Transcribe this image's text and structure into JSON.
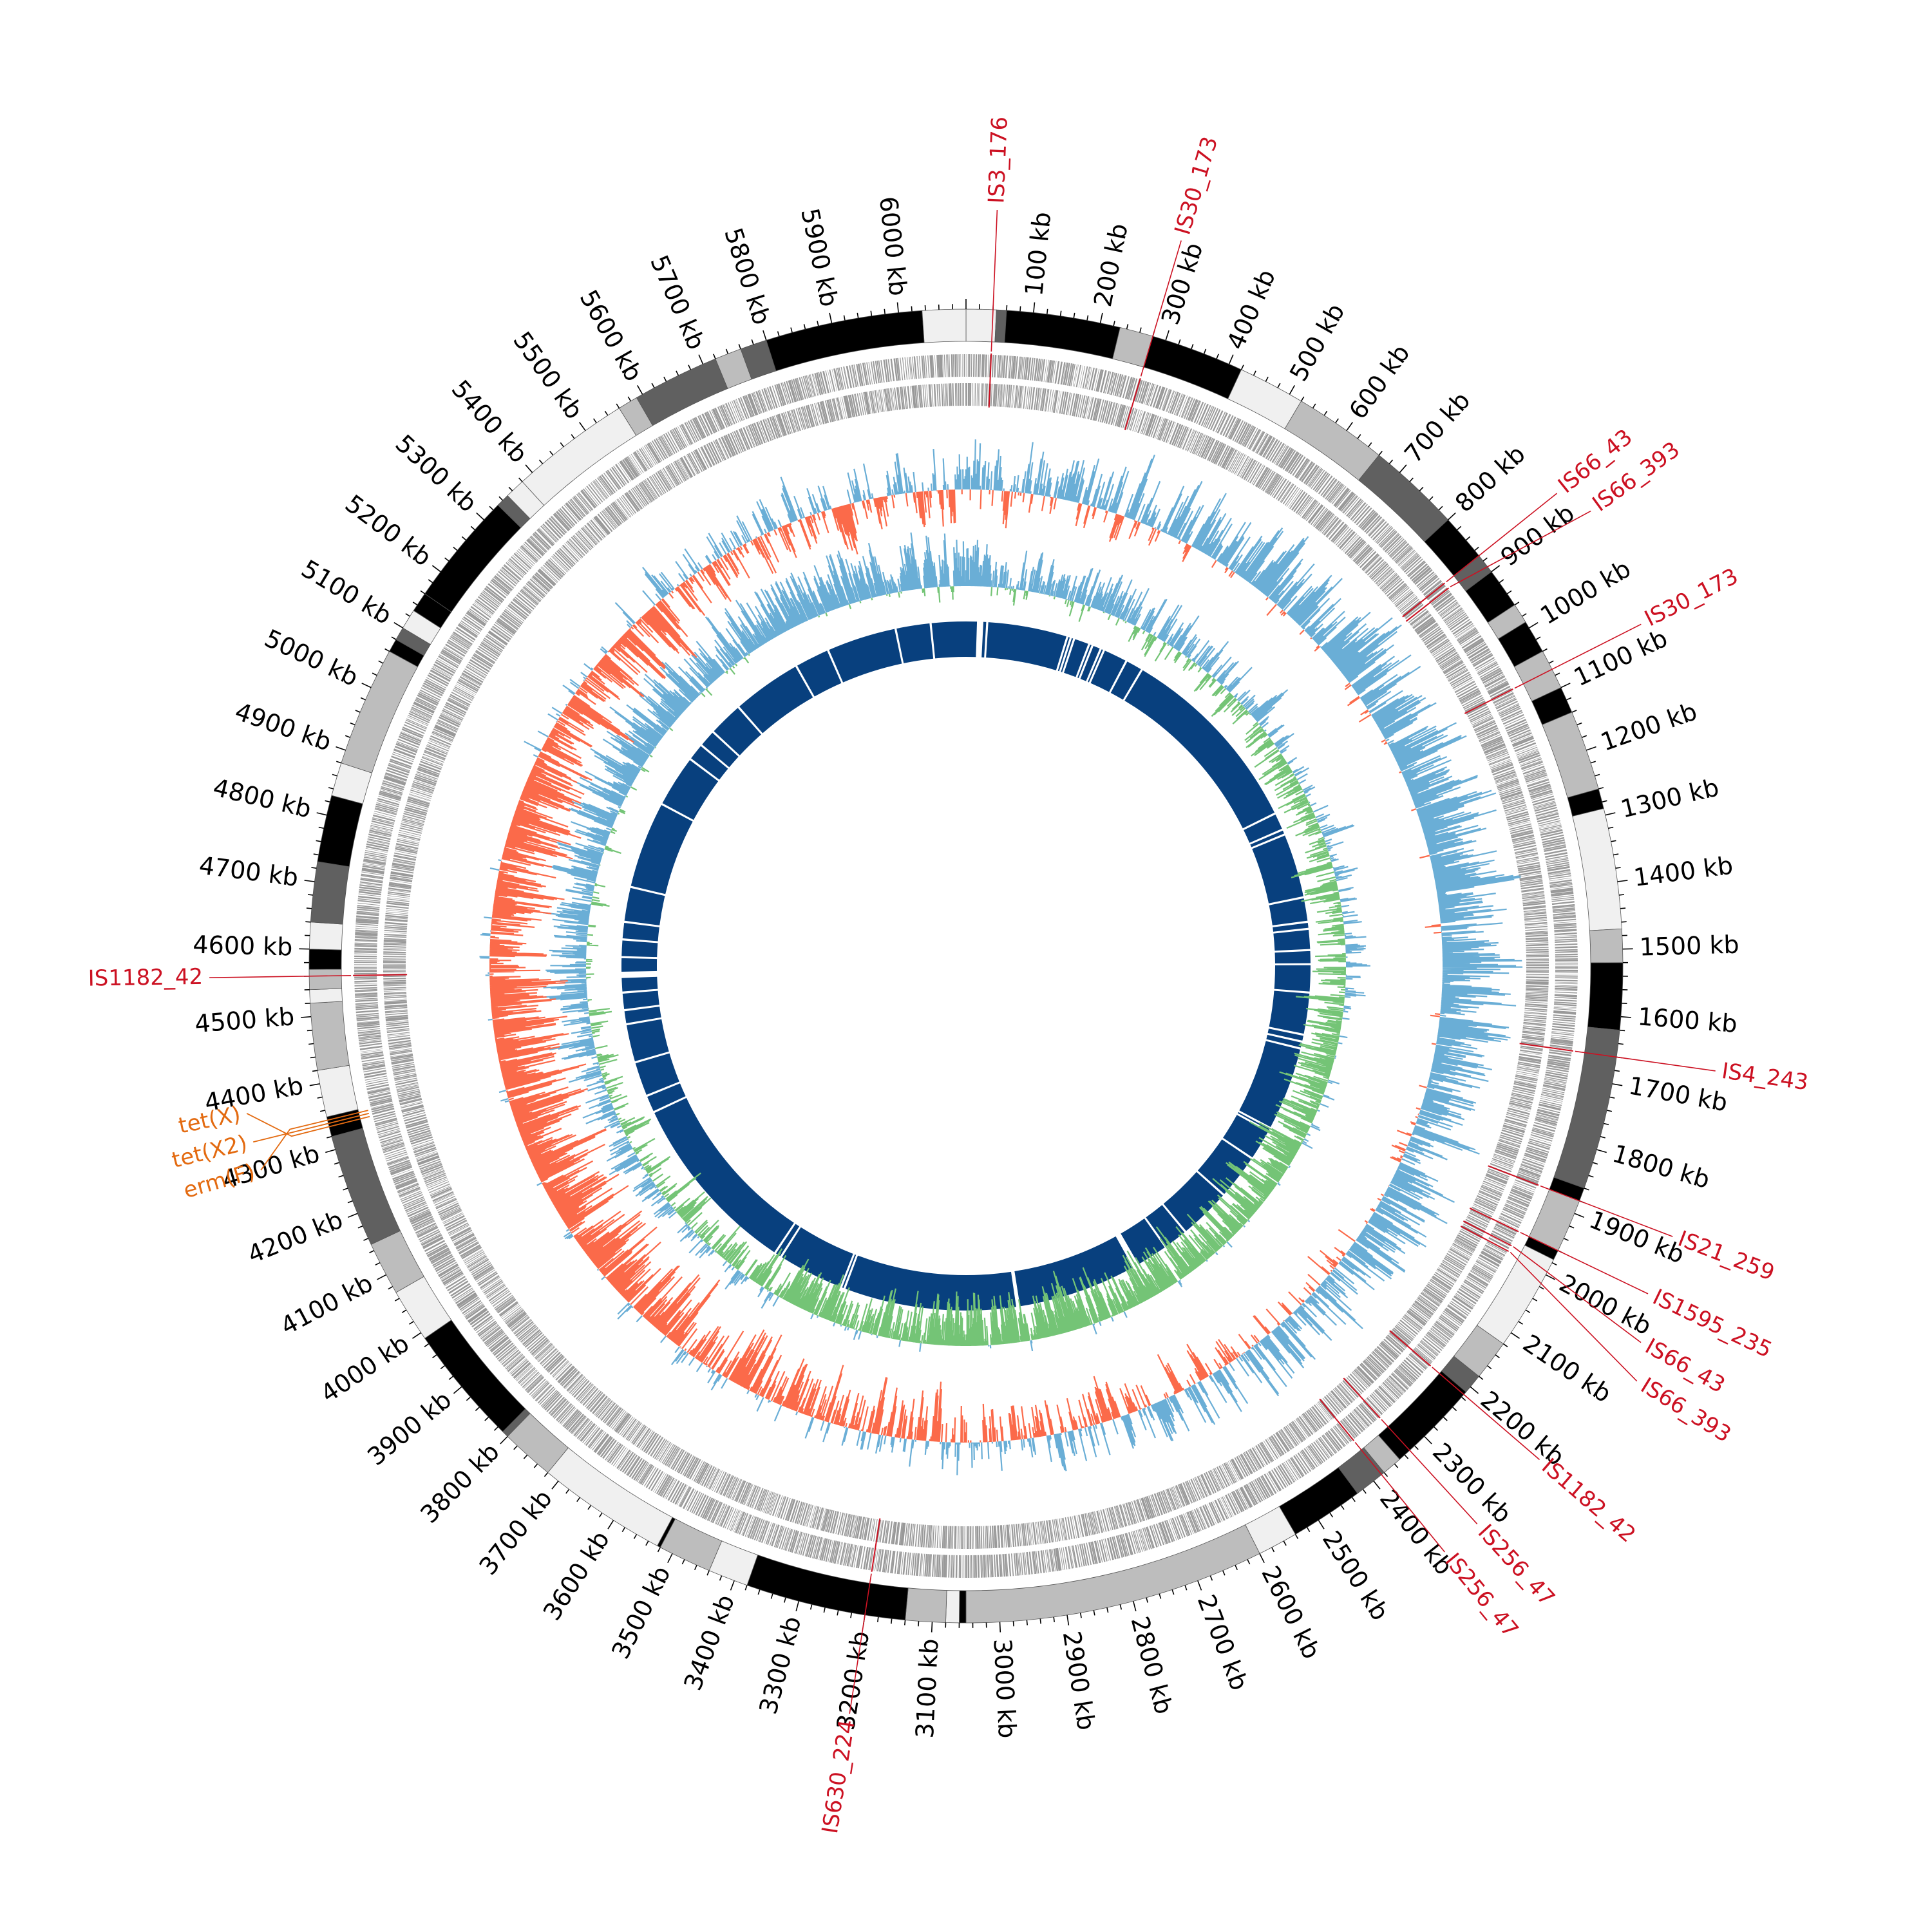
{
  "genome": {
    "length_kb": 6100,
    "unit_suffix": " kb",
    "tick_labels": [
      "100 kb",
      "200 kb",
      "300 kb",
      "400 kb",
      "500 kb",
      "600 kb",
      "700 kb",
      "800 kb",
      "900 kb",
      "1000 kb",
      "1100 kb",
      "1200 kb",
      "1300 kb",
      "1400 kb",
      "1500 kb",
      "1600 kb",
      "1700 kb",
      "1800 kb",
      "1900 kb",
      "2000 kb",
      "2100 kb",
      "2200 kb",
      "2300 kb",
      "2400 kb",
      "2500 kb",
      "2600 kb",
      "2700 kb",
      "2800 kb",
      "2900 kb",
      "3000 kb",
      "3100 kb",
      "3200 kb",
      "3300 kb",
      "3400 kb",
      "3500 kb",
      "3600 kb",
      "3700 kb",
      "3800 kb",
      "3900 kb",
      "4000 kb",
      "4100 kb",
      "4200 kb",
      "4300 kb",
      "4400 kb",
      "4500 kb",
      "4600 kb",
      "4700 kb",
      "4800 kb",
      "4900 kb",
      "5000 kb",
      "5100 kb",
      "5200 kb",
      "5300 kb",
      "5400 kb",
      "5500 kb",
      "5600 kb",
      "5700 kb",
      "5800 kb",
      "5900 kb",
      "6000 kb"
    ]
  },
  "contigs": [
    {
      "start": 0,
      "end": 45,
      "shade": "#f0f0f0"
    },
    {
      "start": 45,
      "end": 60,
      "shade": "#606060"
    },
    {
      "start": 60,
      "end": 230,
      "shade": "#000000"
    },
    {
      "start": 230,
      "end": 280,
      "shade": "#bdbdbd"
    },
    {
      "start": 280,
      "end": 420,
      "shade": "#000000"
    },
    {
      "start": 420,
      "end": 520,
      "shade": "#f0f0f0"
    },
    {
      "start": 520,
      "end": 660,
      "shade": "#bdbdbd"
    },
    {
      "start": 660,
      "end": 800,
      "shade": "#606060"
    },
    {
      "start": 800,
      "end": 870,
      "shade": "#000000"
    },
    {
      "start": 870,
      "end": 900,
      "shade": "#606060"
    },
    {
      "start": 900,
      "end": 960,
      "shade": "#000000"
    },
    {
      "start": 960,
      "end": 990,
      "shade": "#bdbdbd"
    },
    {
      "start": 990,
      "end": 1040,
      "shade": "#000000"
    },
    {
      "start": 1040,
      "end": 1100,
      "shade": "#bdbdbd"
    },
    {
      "start": 1100,
      "end": 1140,
      "shade": "#000000"
    },
    {
      "start": 1140,
      "end": 1260,
      "shade": "#bdbdbd"
    },
    {
      "start": 1260,
      "end": 1290,
      "shade": "#000000"
    },
    {
      "start": 1290,
      "end": 1470,
      "shade": "#f0f0f0"
    },
    {
      "start": 1470,
      "end": 1520,
      "shade": "#bdbdbd"
    },
    {
      "start": 1520,
      "end": 1620,
      "shade": "#000000"
    },
    {
      "start": 1620,
      "end": 1860,
      "shade": "#606060"
    },
    {
      "start": 1860,
      "end": 1880,
      "shade": "#000000"
    },
    {
      "start": 1880,
      "end": 1960,
      "shade": "#bdbdbd"
    },
    {
      "start": 1960,
      "end": 1975,
      "shade": "#000000"
    },
    {
      "start": 1975,
      "end": 2120,
      "shade": "#f0f0f0"
    },
    {
      "start": 2120,
      "end": 2180,
      "shade": "#bdbdbd"
    },
    {
      "start": 2180,
      "end": 2210,
      "shade": "#606060"
    },
    {
      "start": 2210,
      "end": 2350,
      "shade": "#000000"
    },
    {
      "start": 2350,
      "end": 2380,
      "shade": "#bdbdbd"
    },
    {
      "start": 2380,
      "end": 2430,
      "shade": "#606060"
    },
    {
      "start": 2430,
      "end": 2540,
      "shade": "#000000"
    },
    {
      "start": 2540,
      "end": 2600,
      "shade": "#f0f0f0"
    },
    {
      "start": 2600,
      "end": 3050,
      "shade": "#bdbdbd"
    },
    {
      "start": 3050,
      "end": 3060,
      "shade": "#000000"
    },
    {
      "start": 3060,
      "end": 3080,
      "shade": "#f0f0f0"
    },
    {
      "start": 3080,
      "end": 3140,
      "shade": "#bdbdbd"
    },
    {
      "start": 3140,
      "end": 3380,
      "shade": "#000000"
    },
    {
      "start": 3380,
      "end": 3440,
      "shade": "#f0f0f0"
    },
    {
      "start": 3440,
      "end": 3520,
      "shade": "#bdbdbd"
    },
    {
      "start": 3520,
      "end": 3525,
      "shade": "#000000"
    },
    {
      "start": 3525,
      "end": 3720,
      "shade": "#f0f0f0"
    },
    {
      "start": 3720,
      "end": 3800,
      "shade": "#bdbdbd"
    },
    {
      "start": 3800,
      "end": 3810,
      "shade": "#606060"
    },
    {
      "start": 3810,
      "end": 3990,
      "shade": "#000000"
    },
    {
      "start": 3990,
      "end": 4070,
      "shade": "#f0f0f0"
    },
    {
      "start": 4070,
      "end": 4150,
      "shade": "#bdbdbd"
    },
    {
      "start": 4150,
      "end": 4320,
      "shade": "#606060"
    },
    {
      "start": 4320,
      "end": 4350,
      "shade": "#000000"
    },
    {
      "start": 4350,
      "end": 4420,
      "shade": "#f0f0f0"
    },
    {
      "start": 4420,
      "end": 4520,
      "shade": "#bdbdbd"
    },
    {
      "start": 4520,
      "end": 4540,
      "shade": "#f0f0f0"
    },
    {
      "start": 4540,
      "end": 4570,
      "shade": "#bdbdbd"
    },
    {
      "start": 4570,
      "end": 4600,
      "shade": "#000000"
    },
    {
      "start": 4600,
      "end": 4640,
      "shade": "#f0f0f0"
    },
    {
      "start": 4640,
      "end": 4730,
      "shade": "#606060"
    },
    {
      "start": 4730,
      "end": 4830,
      "shade": "#000000"
    },
    {
      "start": 4830,
      "end": 4880,
      "shade": "#f0f0f0"
    },
    {
      "start": 4880,
      "end": 5060,
      "shade": "#bdbdbd"
    },
    {
      "start": 5060,
      "end": 5080,
      "shade": "#000000"
    },
    {
      "start": 5080,
      "end": 5100,
      "shade": "#606060"
    },
    {
      "start": 5100,
      "end": 5130,
      "shade": "#f0f0f0"
    },
    {
      "start": 5130,
      "end": 5160,
      "shade": "#000000"
    },
    {
      "start": 5160,
      "end": 5330,
      "shade": "#000000"
    },
    {
      "start": 5330,
      "end": 5350,
      "shade": "#606060"
    },
    {
      "start": 5350,
      "end": 5380,
      "shade": "#f0f0f0"
    },
    {
      "start": 5380,
      "end": 5560,
      "shade": "#f0f0f0"
    },
    {
      "start": 5560,
      "end": 5590,
      "shade": "#bdbdbd"
    },
    {
      "start": 5590,
      "end": 5720,
      "shade": "#606060"
    },
    {
      "start": 5720,
      "end": 5760,
      "shade": "#bdbdbd"
    },
    {
      "start": 5760,
      "end": 5800,
      "shade": "#606060"
    },
    {
      "start": 5800,
      "end": 6035,
      "shade": "#000000"
    },
    {
      "start": 6035,
      "end": 6100,
      "shade": "#f0f0f0"
    }
  ],
  "is_elements": [
    {
      "label": "IS3_176",
      "pos": 40
    },
    {
      "label": "IS30_173",
      "pos": 280
    },
    {
      "label": "IS66_43",
      "pos": 870
    },
    {
      "label": "IS66_393",
      "pos": 880
    },
    {
      "label": "IS30_173",
      "pos": 1070
    },
    {
      "label": "IS4_243",
      "pos": 1660
    },
    {
      "label": "IS21_259",
      "pos": 1880
    },
    {
      "label": "IS1595_235",
      "pos": 1960
    },
    {
      "label": "IS66_43",
      "pos": 1985
    },
    {
      "label": "IS66_393",
      "pos": 1995
    },
    {
      "label": "IS1182_42",
      "pos": 2215
    },
    {
      "label": "IS256_47",
      "pos": 2330
    },
    {
      "label": "IS256_47",
      "pos": 2385
    },
    {
      "label": "IS630_224",
      "pos": 3200
    },
    {
      "label": "IS1182_42",
      "pos": 4560
    }
  ],
  "resistance_genes": [
    {
      "label": "erm(F)",
      "pos": 4345
    },
    {
      "label": "tet(X2)",
      "pos": 4340
    },
    {
      "label": "tet(X)",
      "pos": 4335
    }
  ],
  "colors": {
    "is_element": "#cc1122",
    "resistance_gene": "#e36a10",
    "cds_track": "#999999",
    "gc_skew_positive": "#6aaed6",
    "gc_skew_negative": "#fb6a4a",
    "gc_content_positive": "#6aaed6",
    "gc_content_negative": "#74c476",
    "homology_ring": "#08407e"
  },
  "homology_ring_gaps_kb": [
    40,
    60,
    290,
    300,
    310,
    355,
    365,
    390,
    400,
    470,
    520,
    1080,
    1130,
    1145,
    1330,
    1400,
    1420,
    1480,
    1520,
    1600,
    1720,
    1740,
    1760,
    2000,
    2010,
    2100,
    2230,
    2380,
    2450,
    2550,
    2900,
    2905,
    3400,
    3410,
    3600,
    3620,
    4150,
    4200,
    4300,
    4410,
    4450,
    4500,
    4550,
    4600,
    4650,
    4700,
    4800,
    5050,
    5200,
    5250,
    5300,
    5400,
    5600,
    5700,
    5900,
    6000
  ]
}
